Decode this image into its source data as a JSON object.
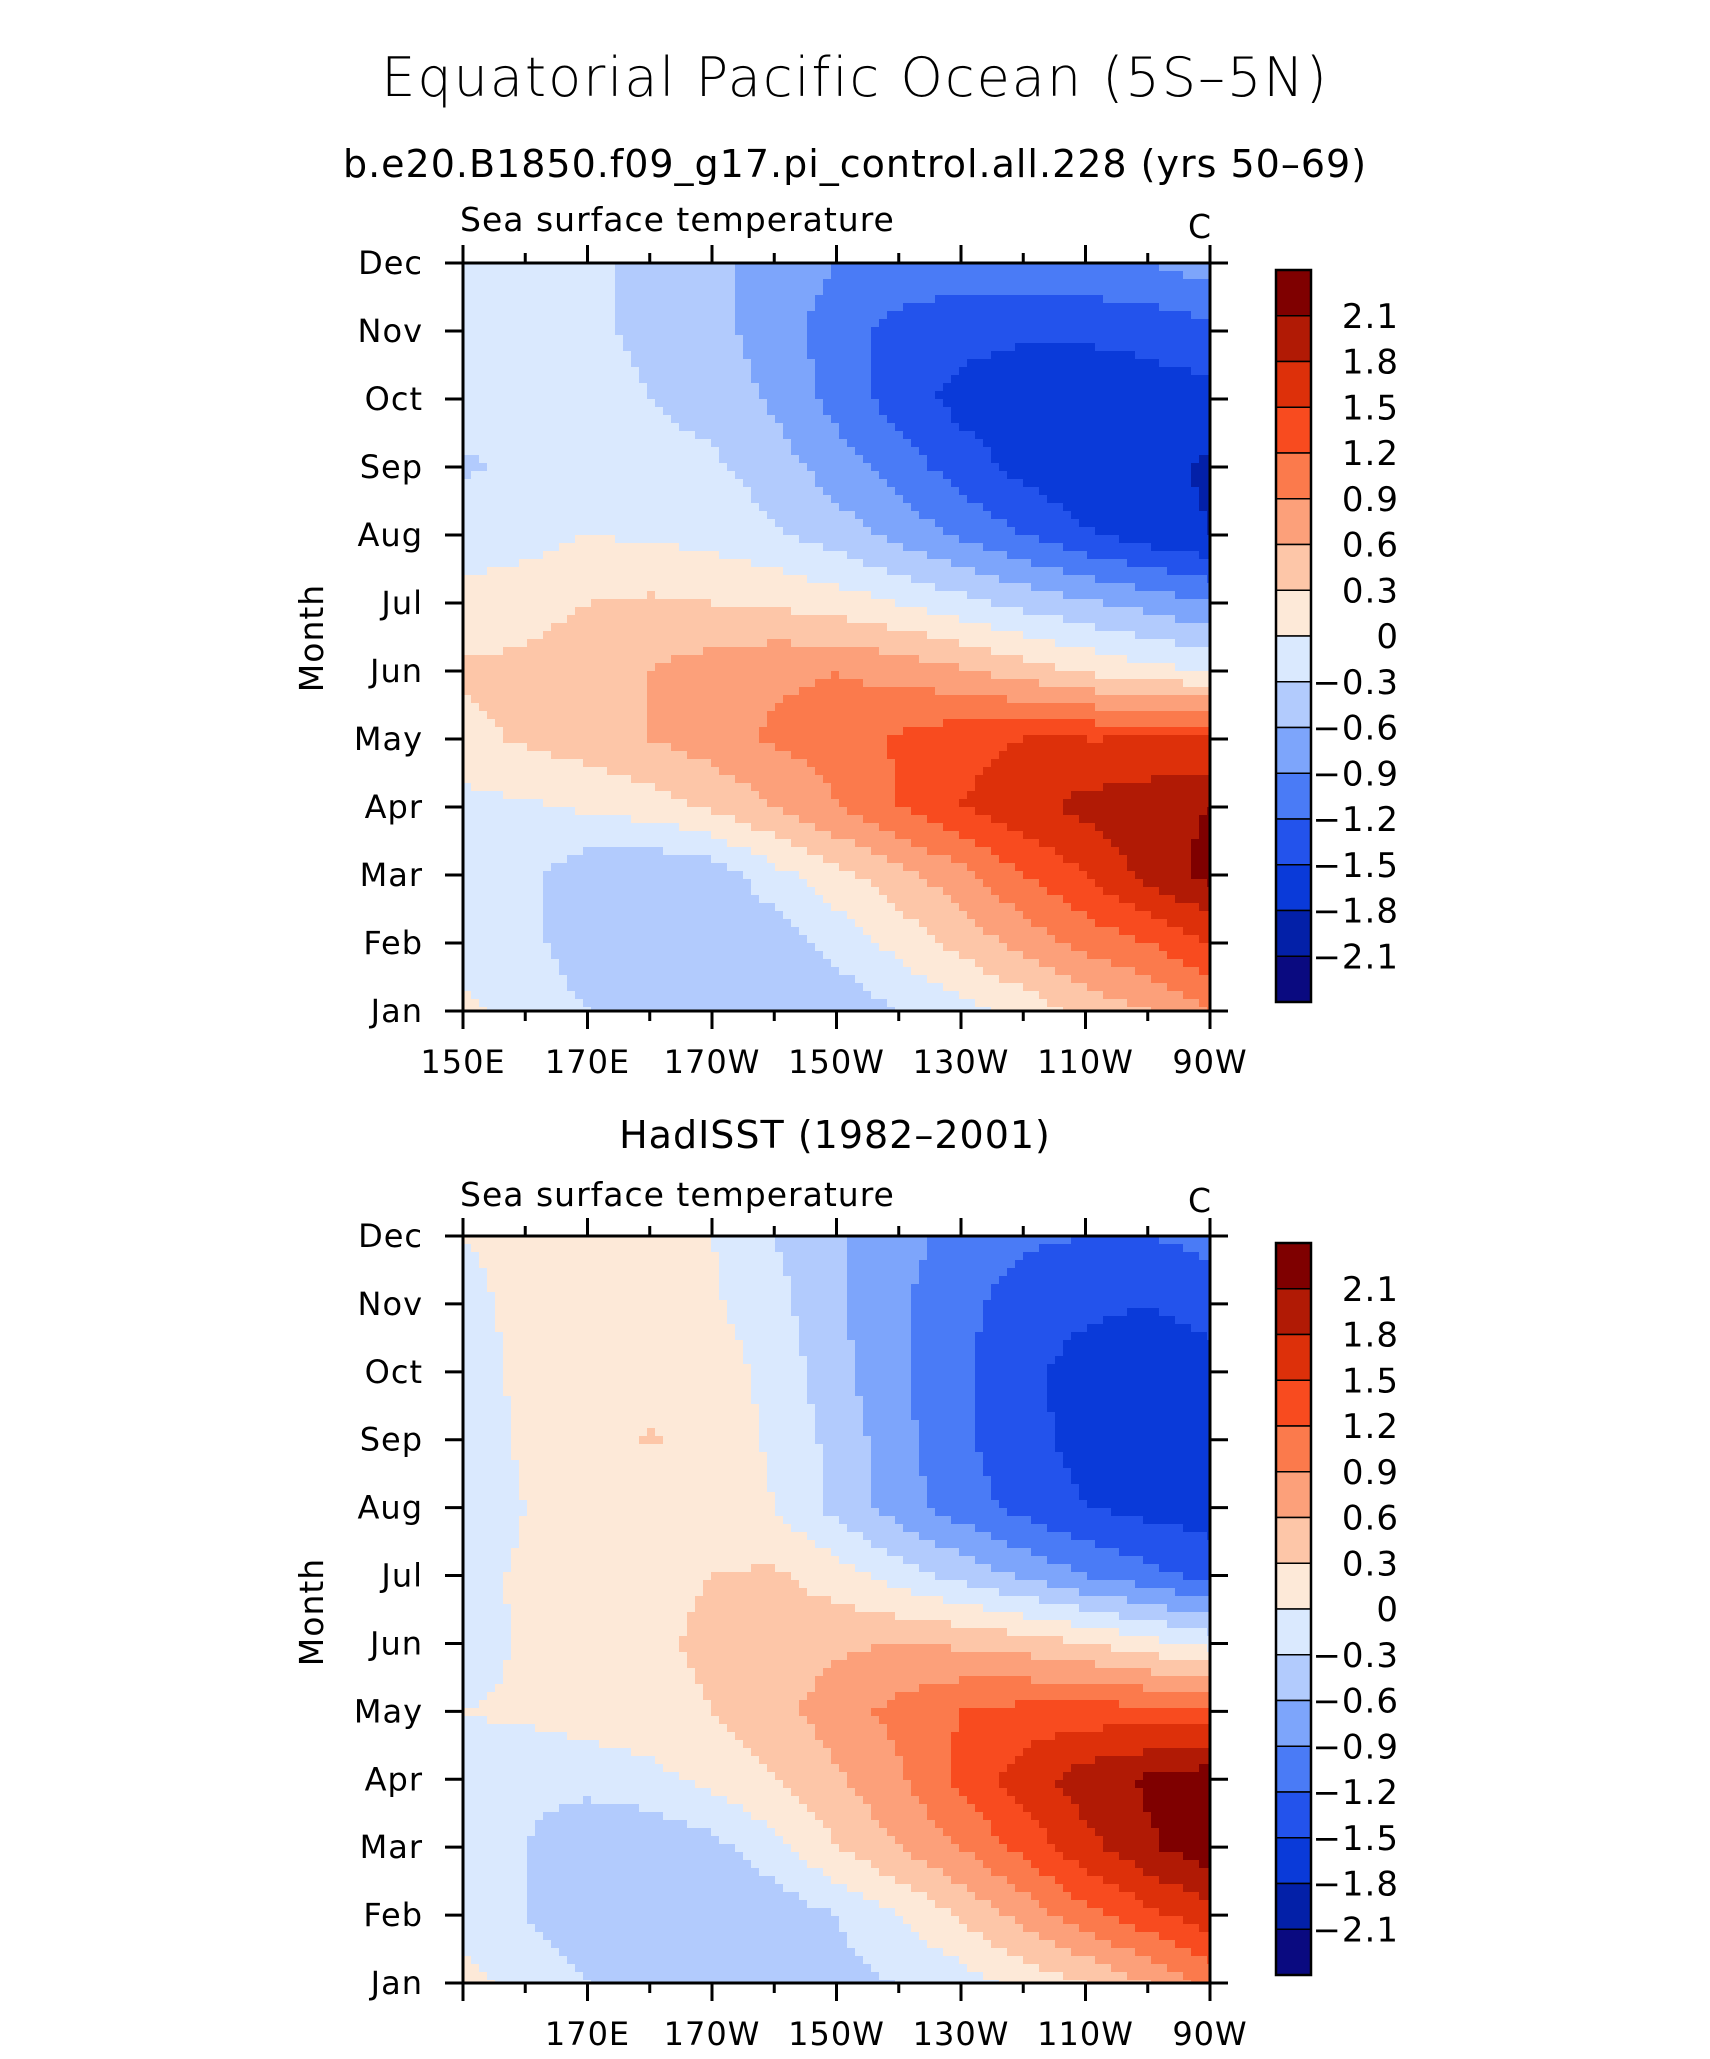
{
  "title": "Equatorial Pacific Ocean (5S–5N)",
  "colors": {
    "levels": [
      "#0a0a80",
      "#0320a8",
      "#0a3ad9",
      "#2353ec",
      "#4a7bf6",
      "#7da5fb",
      "#b2cbfd",
      "#dae9fe",
      "#fde9d8",
      "#fdc6a8",
      "#fca07a",
      "#fb7a4c",
      "#f84b1f",
      "#dd300a",
      "#b11a05",
      "#7f0000"
    ],
    "axis": "#000000",
    "background": "#ffffff"
  },
  "panels": [
    {
      "subtitle": "b.e20.B1850.f09_g17.pi_control.all.228 (yrs 50–69)",
      "left_label": "Sea surface temperature",
      "right_label": "C",
      "ylabel": "Month",
      "xtick_labels": [
        "150E",
        "170E",
        "170W",
        "150W",
        "130W",
        "110W",
        "90W"
      ]
    },
    {
      "subtitle": "HadISST (1982–2001)",
      "left_label": "Sea surface temperature",
      "right_label": "C",
      "ylabel": "Month",
      "xtick_labels": [
        "",
        "170E",
        "170W",
        "150W",
        "130W",
        "110W",
        "90W"
      ]
    }
  ],
  "months": [
    "Jan",
    "Feb",
    "Mar",
    "Apr",
    "May",
    "Jun",
    "Jul",
    "Aug",
    "Sep",
    "Oct",
    "Nov",
    "Dec"
  ],
  "colorbar_labels": [
    "2.1",
    "1.8",
    "1.5",
    "1.2",
    "0.9",
    "0.6",
    "0.3",
    "0",
    "−0.3",
    "−0.6",
    "−0.9",
    "−1.2",
    "−1.5",
    "−1.8",
    "−2.1"
  ],
  "chart_data": [
    {
      "type": "heatmap",
      "title": "Sea surface temperature",
      "units": "C",
      "xlabel": "",
      "ylabel": "Month",
      "x": [
        150,
        160,
        170,
        180,
        190,
        200,
        210,
        220,
        230,
        240,
        250,
        260,
        270
      ],
      "x_tick_labels": [
        "150E",
        "170E",
        "170W",
        "150W",
        "130W",
        "110W",
        "90W"
      ],
      "xlim": [
        150,
        270
      ],
      "y": [
        "Jan",
        "Feb",
        "Mar",
        "Apr",
        "May",
        "Jun",
        "Jul",
        "Aug",
        "Sep",
        "Oct",
        "Nov",
        "Dec"
      ],
      "levels": [
        -2.1,
        -1.8,
        -1.5,
        -1.2,
        -0.9,
        -0.6,
        -0.3,
        0,
        0.3,
        0.6,
        0.9,
        1.2,
        1.5,
        1.8,
        2.1
      ],
      "z": [
        [
          0.1,
          -0.2,
          -0.3,
          -0.45,
          -0.55,
          -0.55,
          -0.5,
          -0.3,
          -0.1,
          0.1,
          0.4,
          0.6,
          0.9
        ],
        [
          -0.15,
          -0.25,
          -0.4,
          -0.55,
          -0.6,
          -0.5,
          -0.2,
          0.1,
          0.4,
          0.7,
          1.0,
          1.2,
          1.5
        ],
        [
          -0.15,
          -0.2,
          -0.5,
          -0.6,
          -0.5,
          -0.1,
          0.2,
          0.5,
          0.8,
          1.2,
          1.5,
          1.9,
          2.2
        ],
        [
          -0.1,
          -0.05,
          0.05,
          0.15,
          0.35,
          0.6,
          0.9,
          1.2,
          1.5,
          1.7,
          1.9,
          2.0,
          2.1
        ],
        [
          0.2,
          0.35,
          0.45,
          0.6,
          0.75,
          0.95,
          1.0,
          1.25,
          1.4,
          1.5,
          1.5,
          1.5,
          1.5
        ],
        [
          0.35,
          0.4,
          0.5,
          0.6,
          0.75,
          0.85,
          0.9,
          0.8,
          0.65,
          0.45,
          0.25,
          0.1,
          0.0
        ],
        [
          0.05,
          0.15,
          0.3,
          0.35,
          0.3,
          0.25,
          0.15,
          0.0,
          -0.2,
          -0.4,
          -0.55,
          -0.7,
          -0.9
        ],
        [
          -0.1,
          -0.1,
          0.0,
          -0.05,
          -0.1,
          -0.25,
          -0.45,
          -0.7,
          -0.95,
          -1.2,
          -1.45,
          -1.65,
          -1.8
        ],
        [
          -0.35,
          -0.2,
          -0.2,
          -0.2,
          -0.25,
          -0.45,
          -0.75,
          -1.05,
          -1.35,
          -1.6,
          -1.8,
          -1.7,
          -1.85
        ],
        [
          -0.15,
          -0.2,
          -0.2,
          -0.3,
          -0.4,
          -0.65,
          -1.0,
          -1.35,
          -1.6,
          -1.7,
          -1.7,
          -1.65,
          -1.6
        ],
        [
          -0.1,
          -0.2,
          -0.25,
          -0.35,
          -0.5,
          -0.75,
          -1.05,
          -1.3,
          -1.4,
          -1.45,
          -1.45,
          -1.4,
          -1.3
        ],
        [
          0.0,
          -0.15,
          -0.25,
          -0.35,
          -0.55,
          -0.7,
          -0.9,
          -1.0,
          -1.05,
          -1.0,
          -0.95,
          -0.9,
          -0.75
        ]
      ]
    },
    {
      "type": "heatmap",
      "title": "Sea surface temperature",
      "units": "C",
      "xlabel": "",
      "ylabel": "Month",
      "x": [
        150,
        160,
        170,
        180,
        190,
        200,
        210,
        220,
        230,
        240,
        250,
        260,
        270
      ],
      "x_tick_labels": [
        "170E",
        "170W",
        "150W",
        "130W",
        "110W",
        "90W"
      ],
      "xlim": [
        150,
        270
      ],
      "y": [
        "Jan",
        "Feb",
        "Mar",
        "Apr",
        "May",
        "Jun",
        "Jul",
        "Aug",
        "Sep",
        "Oct",
        "Nov",
        "Dec"
      ],
      "levels": [
        -2.1,
        -1.8,
        -1.5,
        -1.2,
        -0.9,
        -0.6,
        -0.3,
        0,
        0.3,
        0.6,
        0.9,
        1.2,
        1.5,
        1.8,
        2.1
      ],
      "z": [
        [
          0.1,
          -0.1,
          -0.3,
          -0.4,
          -0.45,
          -0.45,
          -0.4,
          -0.3,
          -0.15,
          0.1,
          0.3,
          0.6,
          1.0
        ],
        [
          -0.15,
          -0.3,
          -0.5,
          -0.6,
          -0.6,
          -0.5,
          -0.3,
          0.0,
          0.35,
          0.7,
          1.1,
          1.4,
          1.7
        ],
        [
          -0.15,
          -0.3,
          -0.55,
          -0.55,
          -0.4,
          -0.1,
          0.3,
          0.6,
          0.9,
          1.3,
          1.7,
          2.05,
          2.3
        ],
        [
          -0.1,
          -0.2,
          -0.2,
          -0.1,
          0.1,
          0.3,
          0.55,
          0.85,
          1.3,
          1.65,
          1.95,
          2.15,
          2.3
        ],
        [
          0.0,
          0.05,
          0.15,
          0.2,
          0.3,
          0.5,
          0.75,
          1.0,
          1.2,
          1.3,
          1.35,
          1.3,
          1.25
        ],
        [
          -0.15,
          0.05,
          0.2,
          0.25,
          0.35,
          0.45,
          0.55,
          0.6,
          0.55,
          0.45,
          0.3,
          0.1,
          -0.1
        ],
        [
          -0.1,
          0.05,
          0.2,
          0.25,
          0.3,
          0.35,
          0.15,
          -0.15,
          -0.4,
          -0.65,
          -0.9,
          -1.1,
          -1.3
        ],
        [
          -0.2,
          0.0,
          0.1,
          0.15,
          0.15,
          0.0,
          -0.4,
          -0.75,
          -1.05,
          -1.3,
          -1.5,
          -1.6,
          -1.65
        ],
        [
          -0.15,
          0.05,
          0.2,
          0.32,
          0.2,
          -0.05,
          -0.4,
          -0.8,
          -1.15,
          -1.4,
          -1.6,
          -1.75,
          -1.7
        ],
        [
          -0.1,
          0.05,
          0.15,
          0.2,
          0.15,
          -0.1,
          -0.5,
          -0.85,
          -1.15,
          -1.45,
          -1.6,
          -1.65,
          -1.6
        ],
        [
          -0.05,
          0.05,
          0.1,
          0.15,
          0.05,
          -0.2,
          -0.55,
          -0.85,
          -1.1,
          -1.35,
          -1.45,
          -1.5,
          -1.4
        ],
        [
          0.0,
          0.05,
          0.1,
          0.1,
          0.0,
          -0.3,
          -0.55,
          -0.8,
          -1.0,
          -1.15,
          -1.2,
          -1.2,
          -1.1
        ]
      ]
    }
  ]
}
